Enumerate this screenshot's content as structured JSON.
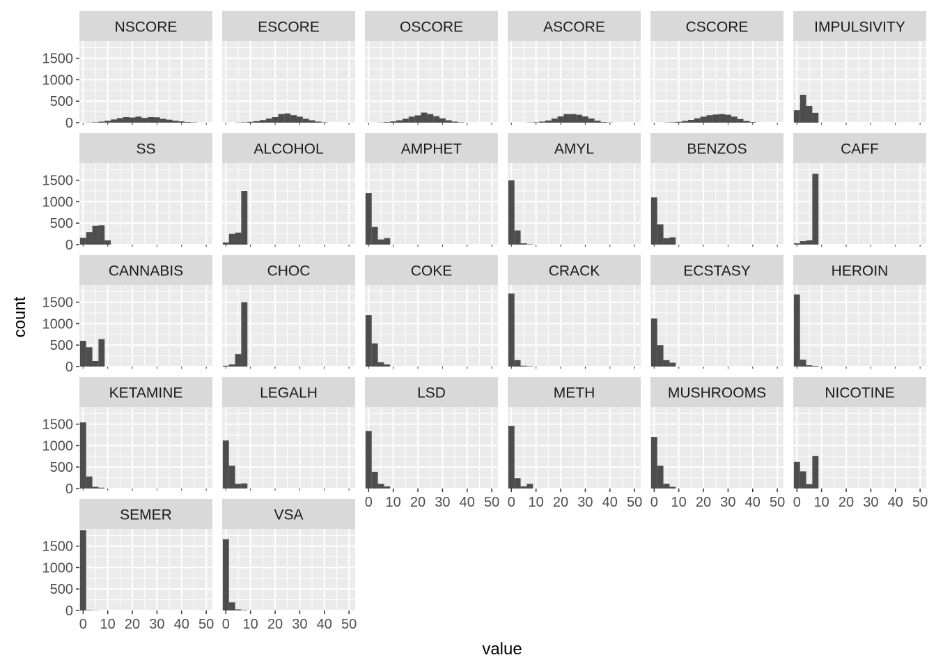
{
  "chart_data": {
    "type": "bar",
    "subtype": "faceted-histogram",
    "title": "",
    "xlabel": "value",
    "ylabel": "count",
    "xlim": [
      -1.5,
      52.5
    ],
    "ylim": [
      0,
      1900
    ],
    "x_ticks": [
      0,
      10,
      20,
      30,
      40,
      50
    ],
    "y_ticks": [
      0,
      500,
      1000,
      1500
    ],
    "bin_width": 2.5,
    "grid": true,
    "background": "#EBEBEB",
    "strip_color": "#D9D9D9",
    "bar_color": "#4D4D4D",
    "facets": [
      {
        "name": "NSCORE",
        "bins": [
          {
            "x": 2.5,
            "count": 5
          },
          {
            "x": 5,
            "count": 12
          },
          {
            "x": 7.5,
            "count": 25
          },
          {
            "x": 10,
            "count": 45
          },
          {
            "x": 12.5,
            "count": 75
          },
          {
            "x": 15,
            "count": 105
          },
          {
            "x": 17.5,
            "count": 130
          },
          {
            "x": 20,
            "count": 120
          },
          {
            "x": 22.5,
            "count": 140
          },
          {
            "x": 25,
            "count": 110
          },
          {
            "x": 27.5,
            "count": 130
          },
          {
            "x": 30,
            "count": 125
          },
          {
            "x": 32.5,
            "count": 90
          },
          {
            "x": 35,
            "count": 70
          },
          {
            "x": 37.5,
            "count": 45
          },
          {
            "x": 40,
            "count": 30
          },
          {
            "x": 42.5,
            "count": 15
          },
          {
            "x": 45,
            "count": 8
          }
        ]
      },
      {
        "name": "ESCORE",
        "bins": [
          {
            "x": 5,
            "count": 5
          },
          {
            "x": 7.5,
            "count": 10
          },
          {
            "x": 10,
            "count": 20
          },
          {
            "x": 12.5,
            "count": 35
          },
          {
            "x": 15,
            "count": 60
          },
          {
            "x": 17.5,
            "count": 95
          },
          {
            "x": 20,
            "count": 130
          },
          {
            "x": 22.5,
            "count": 200
          },
          {
            "x": 25,
            "count": 215
          },
          {
            "x": 27.5,
            "count": 175
          },
          {
            "x": 30,
            "count": 140
          },
          {
            "x": 32.5,
            "count": 90
          },
          {
            "x": 35,
            "count": 55
          },
          {
            "x": 37.5,
            "count": 25
          },
          {
            "x": 40,
            "count": 10
          }
        ]
      },
      {
        "name": "OSCORE",
        "bins": [
          {
            "x": 5,
            "count": 5
          },
          {
            "x": 7.5,
            "count": 15
          },
          {
            "x": 10,
            "count": 30
          },
          {
            "x": 12.5,
            "count": 55
          },
          {
            "x": 15,
            "count": 90
          },
          {
            "x": 17.5,
            "count": 140
          },
          {
            "x": 20,
            "count": 170
          },
          {
            "x": 22.5,
            "count": 235
          },
          {
            "x": 25,
            "count": 200
          },
          {
            "x": 27.5,
            "count": 150
          },
          {
            "x": 30,
            "count": 100
          },
          {
            "x": 32.5,
            "count": 55
          },
          {
            "x": 35,
            "count": 25
          },
          {
            "x": 37.5,
            "count": 10
          }
        ]
      },
      {
        "name": "ASCORE",
        "bins": [
          {
            "x": 7.5,
            "count": 5
          },
          {
            "x": 10,
            "count": 10
          },
          {
            "x": 12.5,
            "count": 25
          },
          {
            "x": 15,
            "count": 50
          },
          {
            "x": 17.5,
            "count": 95
          },
          {
            "x": 20,
            "count": 145
          },
          {
            "x": 22.5,
            "count": 200
          },
          {
            "x": 25,
            "count": 200
          },
          {
            "x": 27.5,
            "count": 185
          },
          {
            "x": 30,
            "count": 145
          },
          {
            "x": 32.5,
            "count": 95
          },
          {
            "x": 35,
            "count": 45
          },
          {
            "x": 37.5,
            "count": 15
          },
          {
            "x": 40,
            "count": 5
          }
        ]
      },
      {
        "name": "CSCORE",
        "bins": [
          {
            "x": 5,
            "count": 5
          },
          {
            "x": 7.5,
            "count": 10
          },
          {
            "x": 10,
            "count": 20
          },
          {
            "x": 12.5,
            "count": 40
          },
          {
            "x": 15,
            "count": 65
          },
          {
            "x": 17.5,
            "count": 100
          },
          {
            "x": 20,
            "count": 140
          },
          {
            "x": 22.5,
            "count": 175
          },
          {
            "x": 25,
            "count": 190
          },
          {
            "x": 27.5,
            "count": 200
          },
          {
            "x": 30,
            "count": 185
          },
          {
            "x": 32.5,
            "count": 140
          },
          {
            "x": 35,
            "count": 85
          },
          {
            "x": 37.5,
            "count": 40
          },
          {
            "x": 40,
            "count": 15
          }
        ]
      },
      {
        "name": "IMPULSIVITY",
        "bins": [
          {
            "x": 0,
            "count": 290
          },
          {
            "x": 2.5,
            "count": 650
          },
          {
            "x": 5,
            "count": 390
          },
          {
            "x": 7.5,
            "count": 230
          }
        ]
      },
      {
        "name": "SS",
        "bins": [
          {
            "x": 0,
            "count": 160
          },
          {
            "x": 2.5,
            "count": 290
          },
          {
            "x": 5,
            "count": 440
          },
          {
            "x": 7.5,
            "count": 450
          },
          {
            "x": 10,
            "count": 100
          }
        ]
      },
      {
        "name": "ALCOHOL",
        "bins": [
          {
            "x": 0,
            "count": 50
          },
          {
            "x": 2.5,
            "count": 250
          },
          {
            "x": 5,
            "count": 280
          },
          {
            "x": 7.5,
            "count": 1250
          }
        ]
      },
      {
        "name": "AMPHET",
        "bins": [
          {
            "x": 0,
            "count": 1200
          },
          {
            "x": 2.5,
            "count": 410
          },
          {
            "x": 5,
            "count": 120
          },
          {
            "x": 7.5,
            "count": 150
          }
        ]
      },
      {
        "name": "AMYL",
        "bins": [
          {
            "x": 0,
            "count": 1500
          },
          {
            "x": 2.5,
            "count": 330
          },
          {
            "x": 5,
            "count": 30
          },
          {
            "x": 7.5,
            "count": 10
          }
        ]
      },
      {
        "name": "BENZOS",
        "bins": [
          {
            "x": 0,
            "count": 1100
          },
          {
            "x": 2.5,
            "count": 470
          },
          {
            "x": 5,
            "count": 150
          },
          {
            "x": 7.5,
            "count": 170
          }
        ]
      },
      {
        "name": "CAFF",
        "bins": [
          {
            "x": 0,
            "count": 30
          },
          {
            "x": 2.5,
            "count": 80
          },
          {
            "x": 5,
            "count": 100
          },
          {
            "x": 7.5,
            "count": 1650
          }
        ]
      },
      {
        "name": "CANNABIS",
        "bins": [
          {
            "x": 0,
            "count": 600
          },
          {
            "x": 2.5,
            "count": 450
          },
          {
            "x": 5,
            "count": 130
          },
          {
            "x": 7.5,
            "count": 640
          }
        ]
      },
      {
        "name": "CHOC",
        "bins": [
          {
            "x": 0,
            "count": 20
          },
          {
            "x": 2.5,
            "count": 50
          },
          {
            "x": 5,
            "count": 290
          },
          {
            "x": 7.5,
            "count": 1500
          }
        ]
      },
      {
        "name": "COKE",
        "bins": [
          {
            "x": 0,
            "count": 1200
          },
          {
            "x": 2.5,
            "count": 540
          },
          {
            "x": 5,
            "count": 100
          },
          {
            "x": 7.5,
            "count": 50
          }
        ]
      },
      {
        "name": "CRACK",
        "bins": [
          {
            "x": 0,
            "count": 1700
          },
          {
            "x": 2.5,
            "count": 150
          },
          {
            "x": 5,
            "count": 20
          },
          {
            "x": 7.5,
            "count": 10
          }
        ]
      },
      {
        "name": "ECSTASY",
        "bins": [
          {
            "x": 0,
            "count": 1120
          },
          {
            "x": 2.5,
            "count": 500
          },
          {
            "x": 5,
            "count": 150
          },
          {
            "x": 7.5,
            "count": 90
          }
        ]
      },
      {
        "name": "HEROIN",
        "bins": [
          {
            "x": 0,
            "count": 1680
          },
          {
            "x": 2.5,
            "count": 160
          },
          {
            "x": 5,
            "count": 30
          },
          {
            "x": 7.5,
            "count": 15
          }
        ]
      },
      {
        "name": "KETAMINE",
        "bins": [
          {
            "x": 0,
            "count": 1540
          },
          {
            "x": 2.5,
            "count": 280
          },
          {
            "x": 5,
            "count": 40
          },
          {
            "x": 7.5,
            "count": 20
          }
        ]
      },
      {
        "name": "LEGALH",
        "bins": [
          {
            "x": 0,
            "count": 1120
          },
          {
            "x": 2.5,
            "count": 530
          },
          {
            "x": 5,
            "count": 110
          },
          {
            "x": 7.5,
            "count": 120
          }
        ]
      },
      {
        "name": "LSD",
        "bins": [
          {
            "x": 0,
            "count": 1340
          },
          {
            "x": 2.5,
            "count": 390
          },
          {
            "x": 5,
            "count": 110
          },
          {
            "x": 7.5,
            "count": 50
          }
        ]
      },
      {
        "name": "METH",
        "bins": [
          {
            "x": 0,
            "count": 1460
          },
          {
            "x": 2.5,
            "count": 240
          },
          {
            "x": 5,
            "count": 50
          },
          {
            "x": 7.5,
            "count": 110
          }
        ]
      },
      {
        "name": "MUSHROOMS",
        "bins": [
          {
            "x": 0,
            "count": 1200
          },
          {
            "x": 2.5,
            "count": 530
          },
          {
            "x": 5,
            "count": 110
          },
          {
            "x": 7.5,
            "count": 40
          }
        ]
      },
      {
        "name": "NICOTINE",
        "bins": [
          {
            "x": 0,
            "count": 620
          },
          {
            "x": 2.5,
            "count": 400
          },
          {
            "x": 5,
            "count": 100
          },
          {
            "x": 7.5,
            "count": 760
          }
        ]
      },
      {
        "name": "SEMER",
        "bins": [
          {
            "x": 0,
            "count": 1870
          },
          {
            "x": 2.5,
            "count": 10
          },
          {
            "x": 5,
            "count": 5
          }
        ]
      },
      {
        "name": "VSA",
        "bins": [
          {
            "x": 0,
            "count": 1660
          },
          {
            "x": 2.5,
            "count": 190
          },
          {
            "x": 5,
            "count": 25
          },
          {
            "x": 7.5,
            "count": 10
          }
        ]
      }
    ]
  }
}
